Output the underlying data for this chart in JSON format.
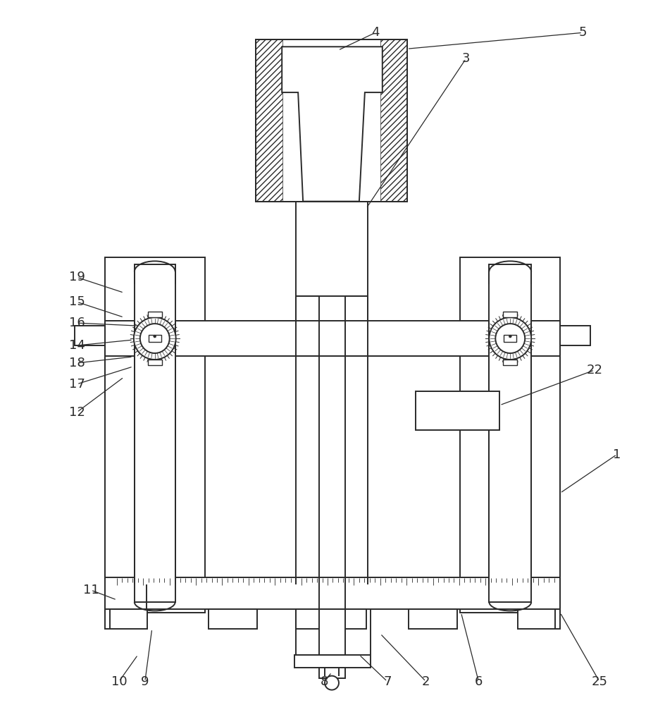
{
  "bg_color": "#ffffff",
  "line_color": "#2a2a2a",
  "lw": 1.4,
  "fig_width": 9.44,
  "fig_height": 10.0
}
